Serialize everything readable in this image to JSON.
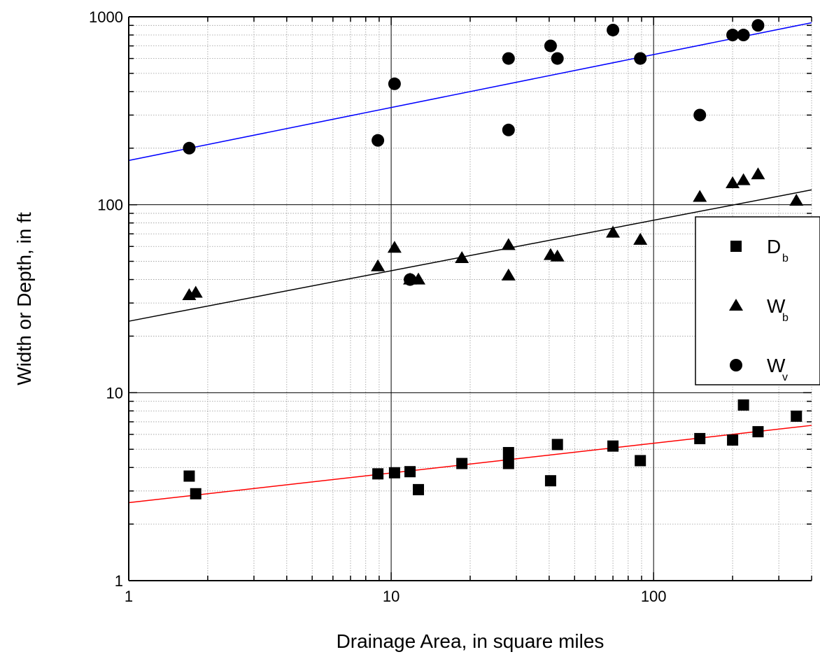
{
  "chart_data": {
    "type": "scatter",
    "xlabel": "Drainage Area, in square miles",
    "ylabel": "Width or Depth, in ft",
    "xscale": "log",
    "yscale": "log",
    "xlim": [
      1,
      400
    ],
    "ylim": [
      1,
      1000
    ],
    "x_ticks": [
      "1",
      "10",
      "100"
    ],
    "y_ticks": [
      "1",
      "10",
      "100",
      "1000"
    ],
    "grid": true,
    "legend_position": "right",
    "series": [
      {
        "name": "D",
        "subscript": "b",
        "marker": "square",
        "color": "#000000",
        "points": [
          [
            1.7,
            3.6
          ],
          [
            1.8,
            2.9
          ],
          [
            8.9,
            3.7
          ],
          [
            10.3,
            3.75
          ],
          [
            11.8,
            3.8
          ],
          [
            12.7,
            3.05
          ],
          [
            18.6,
            4.2
          ],
          [
            28,
            4.2
          ],
          [
            28,
            4.8
          ],
          [
            40.5,
            3.4
          ],
          [
            43,
            5.3
          ],
          [
            70,
            5.2
          ],
          [
            89,
            4.35
          ],
          [
            150,
            5.7
          ],
          [
            200,
            5.6
          ],
          [
            220,
            8.6
          ],
          [
            250,
            6.2
          ],
          [
            350,
            7.5
          ]
        ]
      },
      {
        "name": "W",
        "subscript": "b",
        "marker": "triangle",
        "color": "#000000",
        "points": [
          [
            1.7,
            33
          ],
          [
            1.8,
            34
          ],
          [
            8.9,
            47
          ],
          [
            10.3,
            59
          ],
          [
            11.8,
            40
          ],
          [
            12.7,
            40
          ],
          [
            18.6,
            52
          ],
          [
            28,
            42
          ],
          [
            28,
            61
          ],
          [
            40.5,
            54
          ],
          [
            43,
            53
          ],
          [
            70,
            71
          ],
          [
            89,
            65
          ],
          [
            150,
            110
          ],
          [
            200,
            130
          ],
          [
            220,
            135
          ],
          [
            250,
            145
          ],
          [
            350,
            105
          ]
        ]
      },
      {
        "name": "W",
        "subscript": "v",
        "marker": "circle",
        "color": "#000000",
        "points": [
          [
            1.7,
            200
          ],
          [
            8.9,
            220
          ],
          [
            10.3,
            440
          ],
          [
            11.8,
            40
          ],
          [
            28,
            600
          ],
          [
            28,
            250
          ],
          [
            40.5,
            700
          ],
          [
            43,
            600
          ],
          [
            70,
            850
          ],
          [
            89,
            600
          ],
          [
            150,
            300
          ],
          [
            200,
            800
          ],
          [
            220,
            800
          ],
          [
            250,
            900
          ]
        ]
      }
    ],
    "regression_lines": [
      {
        "series": "D_b",
        "color": "#ff0000",
        "from": [
          1,
          2.6
        ],
        "to": [
          400,
          6.7
        ]
      },
      {
        "series": "W_b",
        "color": "#000000",
        "from": [
          1,
          24
        ],
        "to": [
          400,
          120
        ]
      },
      {
        "series": "W_v",
        "color": "#0000ff",
        "from": [
          1,
          172
        ],
        "to": [
          400,
          930
        ]
      }
    ]
  }
}
